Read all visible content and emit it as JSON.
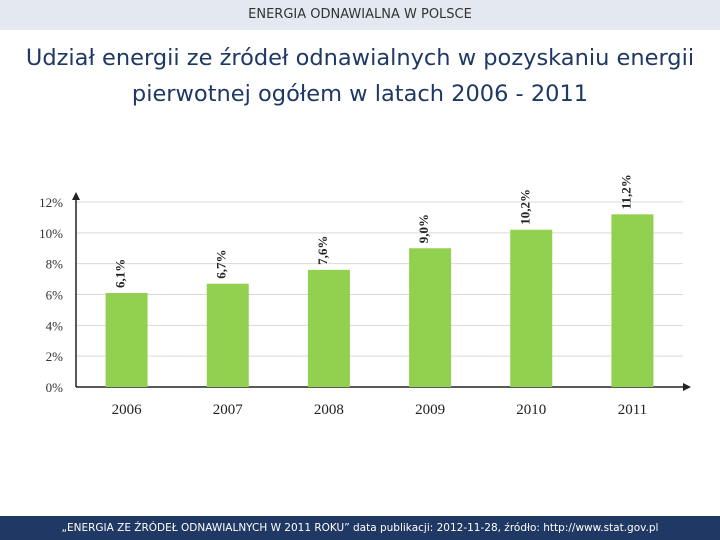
{
  "header": {
    "title": "ENERGIA ODNAWIALNA W POLSCE"
  },
  "slide": {
    "title": "Udział energii ze źródeł odnawialnych w pozyskaniu energii pierwotnej ogółem w latach 2006 - 2011"
  },
  "footer": {
    "text": "„ENERGIA ZE ŹRÓDEŁ ODNAWIALNYCH W 2011 ROKU” data publikacji: 2012-11-28, źródło: http://www.stat.gov.pl"
  },
  "colors": {
    "bar": "#92d050",
    "header_bg": "#e4e8f1",
    "footer_bg": "#1f3864",
    "title": "#1f3864",
    "grid": "#d9d9d9"
  },
  "chart_data": {
    "type": "bar",
    "categories": [
      "2006",
      "2007",
      "2008",
      "2009",
      "2010",
      "2011"
    ],
    "values": [
      6.1,
      6.7,
      7.6,
      9.0,
      10.2,
      11.2
    ],
    "data_labels": [
      "6,1%",
      "6,7%",
      "7,6%",
      "9,0%",
      "10,2%",
      "11,2%"
    ],
    "yticks": [
      0,
      2,
      4,
      6,
      8,
      10,
      12
    ],
    "ytick_labels": [
      "0%",
      "2%",
      "4%",
      "6%",
      "8%",
      "10%",
      "12%"
    ],
    "ylim": [
      0,
      12
    ],
    "grid": true,
    "legend": "none"
  }
}
